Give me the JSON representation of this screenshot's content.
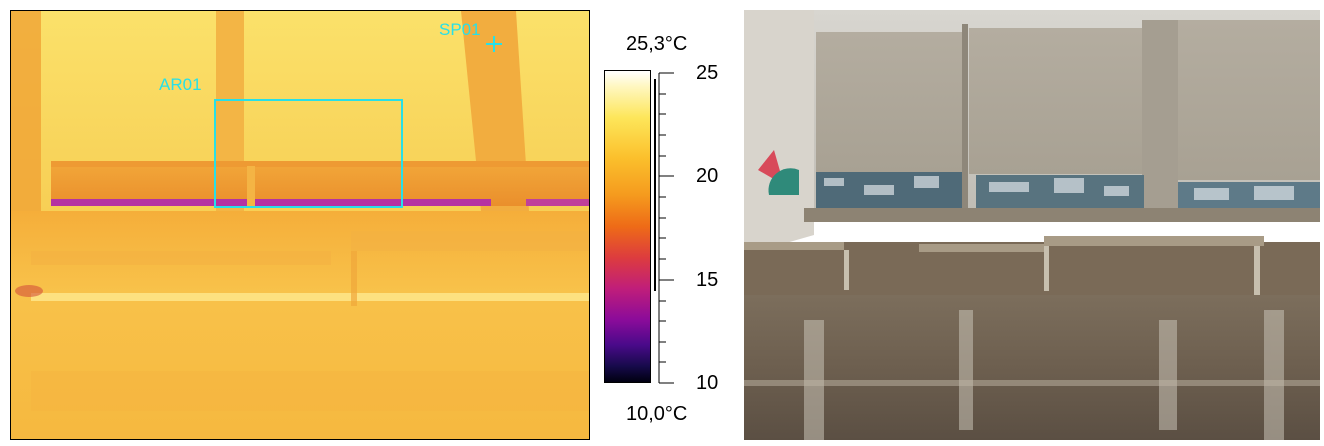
{
  "thermal": {
    "area_label": "AR01",
    "spot_label": "SP01"
  },
  "scale": {
    "max_temp": "25,3°C",
    "min_temp": "10,0°C",
    "ticks": [
      "25",
      "20",
      "15",
      "10"
    ]
  }
}
